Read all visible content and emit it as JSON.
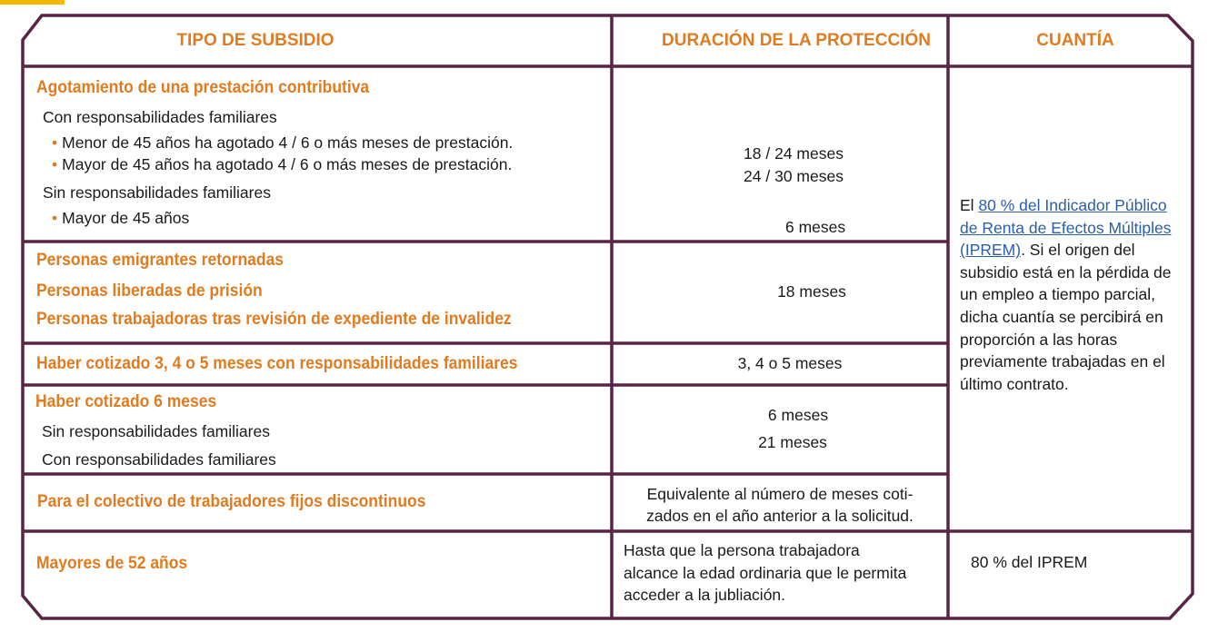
{
  "colors": {
    "border": "#5a2446",
    "accent": "#e07b20",
    "link": "#2b5ea8",
    "tab": "#f5b800"
  },
  "headers": [
    "TIPO DE SUBSIDIO",
    "DURACIÓN DE LA PROTECCIÓN",
    "CUANTÍA"
  ],
  "rows": [
    {
      "title": "Agotamiento de una prestación contributiva",
      "sub1": "Con responsabilidades familiares",
      "b1": "Menor de 45 años ha agotado 4 / 6 o más meses de prestación.",
      "b2": "Mayor de 45 años ha agotado 4 / 6 o más meses de prestación.",
      "sub2": "Sin responsabilidades familiares",
      "b3": "Mayor de 45 años",
      "d1": "18 / 24 meses",
      "d2": "24 / 30 meses",
      "d3": "6 meses"
    },
    {
      "t1": "Personas emigrantes retornadas",
      "t2": "Personas liberadas de prisión",
      "t3": "Personas trabajadoras tras revisión de expediente de invalidez",
      "d1": "18 meses"
    },
    {
      "title": "Haber cotizado 3, 4 o 5 meses con responsabilidades familiares",
      "d1": "3, 4 o 5 meses"
    },
    {
      "title": "Haber cotizado 6 meses",
      "sub1": "Sin responsabilidades familiares",
      "sub2": "Con responsabilidades familiares",
      "d1": "6 meses",
      "d2": "21 meses"
    },
    {
      "title": "Para el colectivo de trabajadores fijos discontinuos",
      "d1": "Equivalente al número de meses coti-",
      "d2": "zados en el año anterior a la solicitud."
    },
    {
      "title": "Mayores de 52 años",
      "d1": "Hasta que la persona trabajadora",
      "d2": "alcance la edad ordinaria que le permita",
      "d3": "acceder a la jubliación.",
      "amount": "80 % del IPREM"
    }
  ],
  "cuantia": {
    "pre": "El ",
    "link": "80 % del Indicador Público de Renta de Efectos Múltiples (IPREM)",
    "post": ". Si el origen del subsidio está en la pérdida de un empleo a tiempo parcial, dicha cuantía se percibirá en proporción a las horas previamente trabajadas en el último contrato."
  },
  "bullet": "•"
}
